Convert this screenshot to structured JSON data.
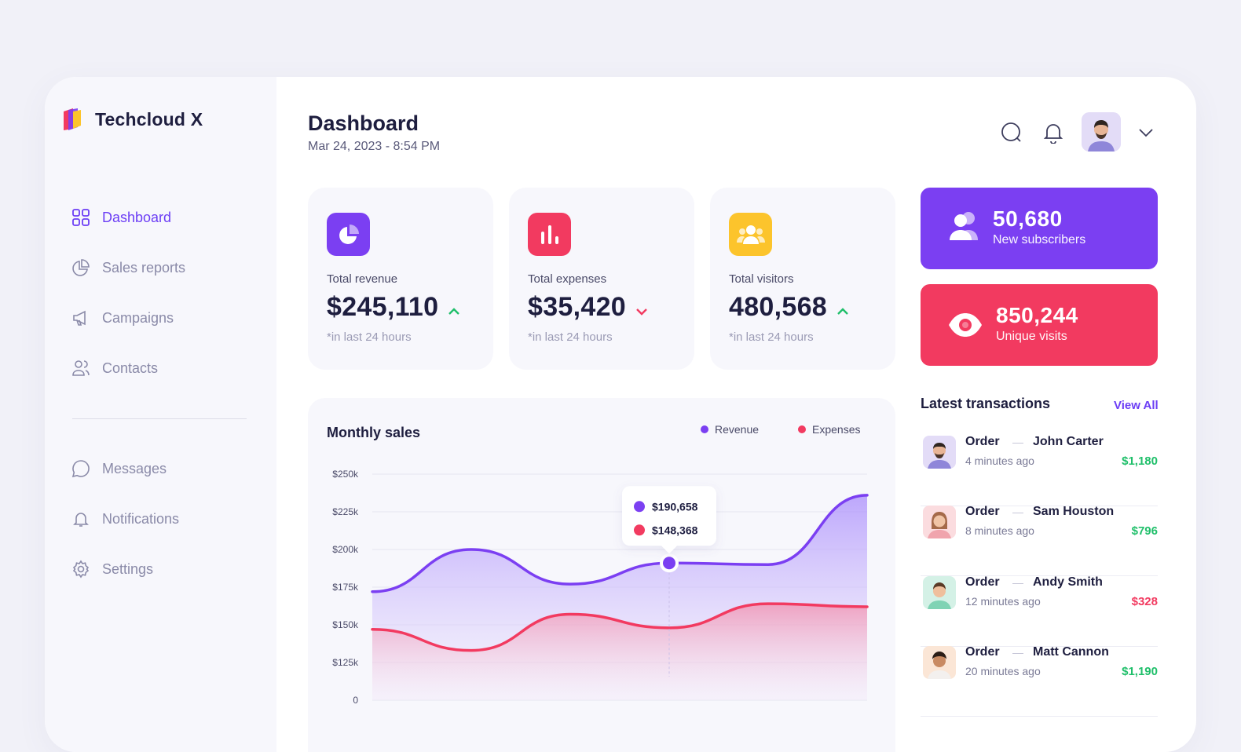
{
  "app": {
    "name": "Techcloud X"
  },
  "sidebar": {
    "items": [
      {
        "label": "Dashboard",
        "icon": "grid-icon",
        "active": true
      },
      {
        "label": "Sales reports",
        "icon": "pie-chart-icon"
      },
      {
        "label": "Campaigns",
        "icon": "megaphone-icon"
      },
      {
        "label": "Contacts",
        "icon": "users-icon"
      },
      {
        "label": "Messages",
        "icon": "chat-bubble-icon"
      },
      {
        "label": "Notifications",
        "icon": "bell-icon"
      },
      {
        "label": "Settings",
        "icon": "gear-icon"
      }
    ]
  },
  "header": {
    "title": "Dashboard",
    "date": "Mar 24, 2023 - 8:54 PM"
  },
  "stats": [
    {
      "label": "Total revenue",
      "value": "$245,110",
      "note": "*in last 24 hours",
      "trend": "up",
      "color": "#7b3ff2"
    },
    {
      "label": "Total expenses",
      "value": "$35,420",
      "note": "*in last 24 hours",
      "trend": "down",
      "color": "#f23a60"
    },
    {
      "label": "Total visitors",
      "value": "480,568",
      "note": "*in last 24 hours",
      "trend": "up",
      "color": "#fcc42c"
    }
  ],
  "highlights": [
    {
      "value": "50,680",
      "label": "New subscribers",
      "color": "#7b3ff2"
    },
    {
      "value": "850,244",
      "label": "Unique visits",
      "color": "#f23a60"
    }
  ],
  "chart_data": {
    "type": "area",
    "title": "Monthly sales",
    "legend": [
      {
        "name": "Revenue",
        "color": "#7b3ff2"
      },
      {
        "name": "Expenses",
        "color": "#f23a60"
      }
    ],
    "y_ticks": [
      "$250k",
      "$225k",
      "$200k",
      "$175k",
      "$150k",
      "$125k",
      "0"
    ],
    "series": [
      {
        "name": "Revenue",
        "color": "#7b3ff2",
        "values": [
          172000,
          200000,
          177000,
          191000,
          190000,
          236000
        ]
      },
      {
        "name": "Expenses",
        "color": "#f23a60",
        "values": [
          147000,
          133000,
          157000,
          148000,
          164000,
          162000
        ]
      }
    ],
    "tooltip": {
      "revenue": "$190,658",
      "expenses": "$148,368"
    }
  },
  "transactions": {
    "title": "Latest transactions",
    "view_all": "View All",
    "items": [
      {
        "type": "Order",
        "name": "John Carter",
        "time": "4 minutes ago",
        "amount": "$1,180",
        "positive": true
      },
      {
        "type": "Order",
        "name": "Sam Houston",
        "time": "8 minutes ago",
        "amount": "$796",
        "positive": true
      },
      {
        "type": "Order",
        "name": "Andy Smith",
        "time": "12 minutes ago",
        "amount": "$328",
        "positive": false
      },
      {
        "type": "Order",
        "name": "Matt Cannon",
        "time": "20 minutes ago",
        "amount": "$1,190",
        "positive": true
      }
    ]
  }
}
